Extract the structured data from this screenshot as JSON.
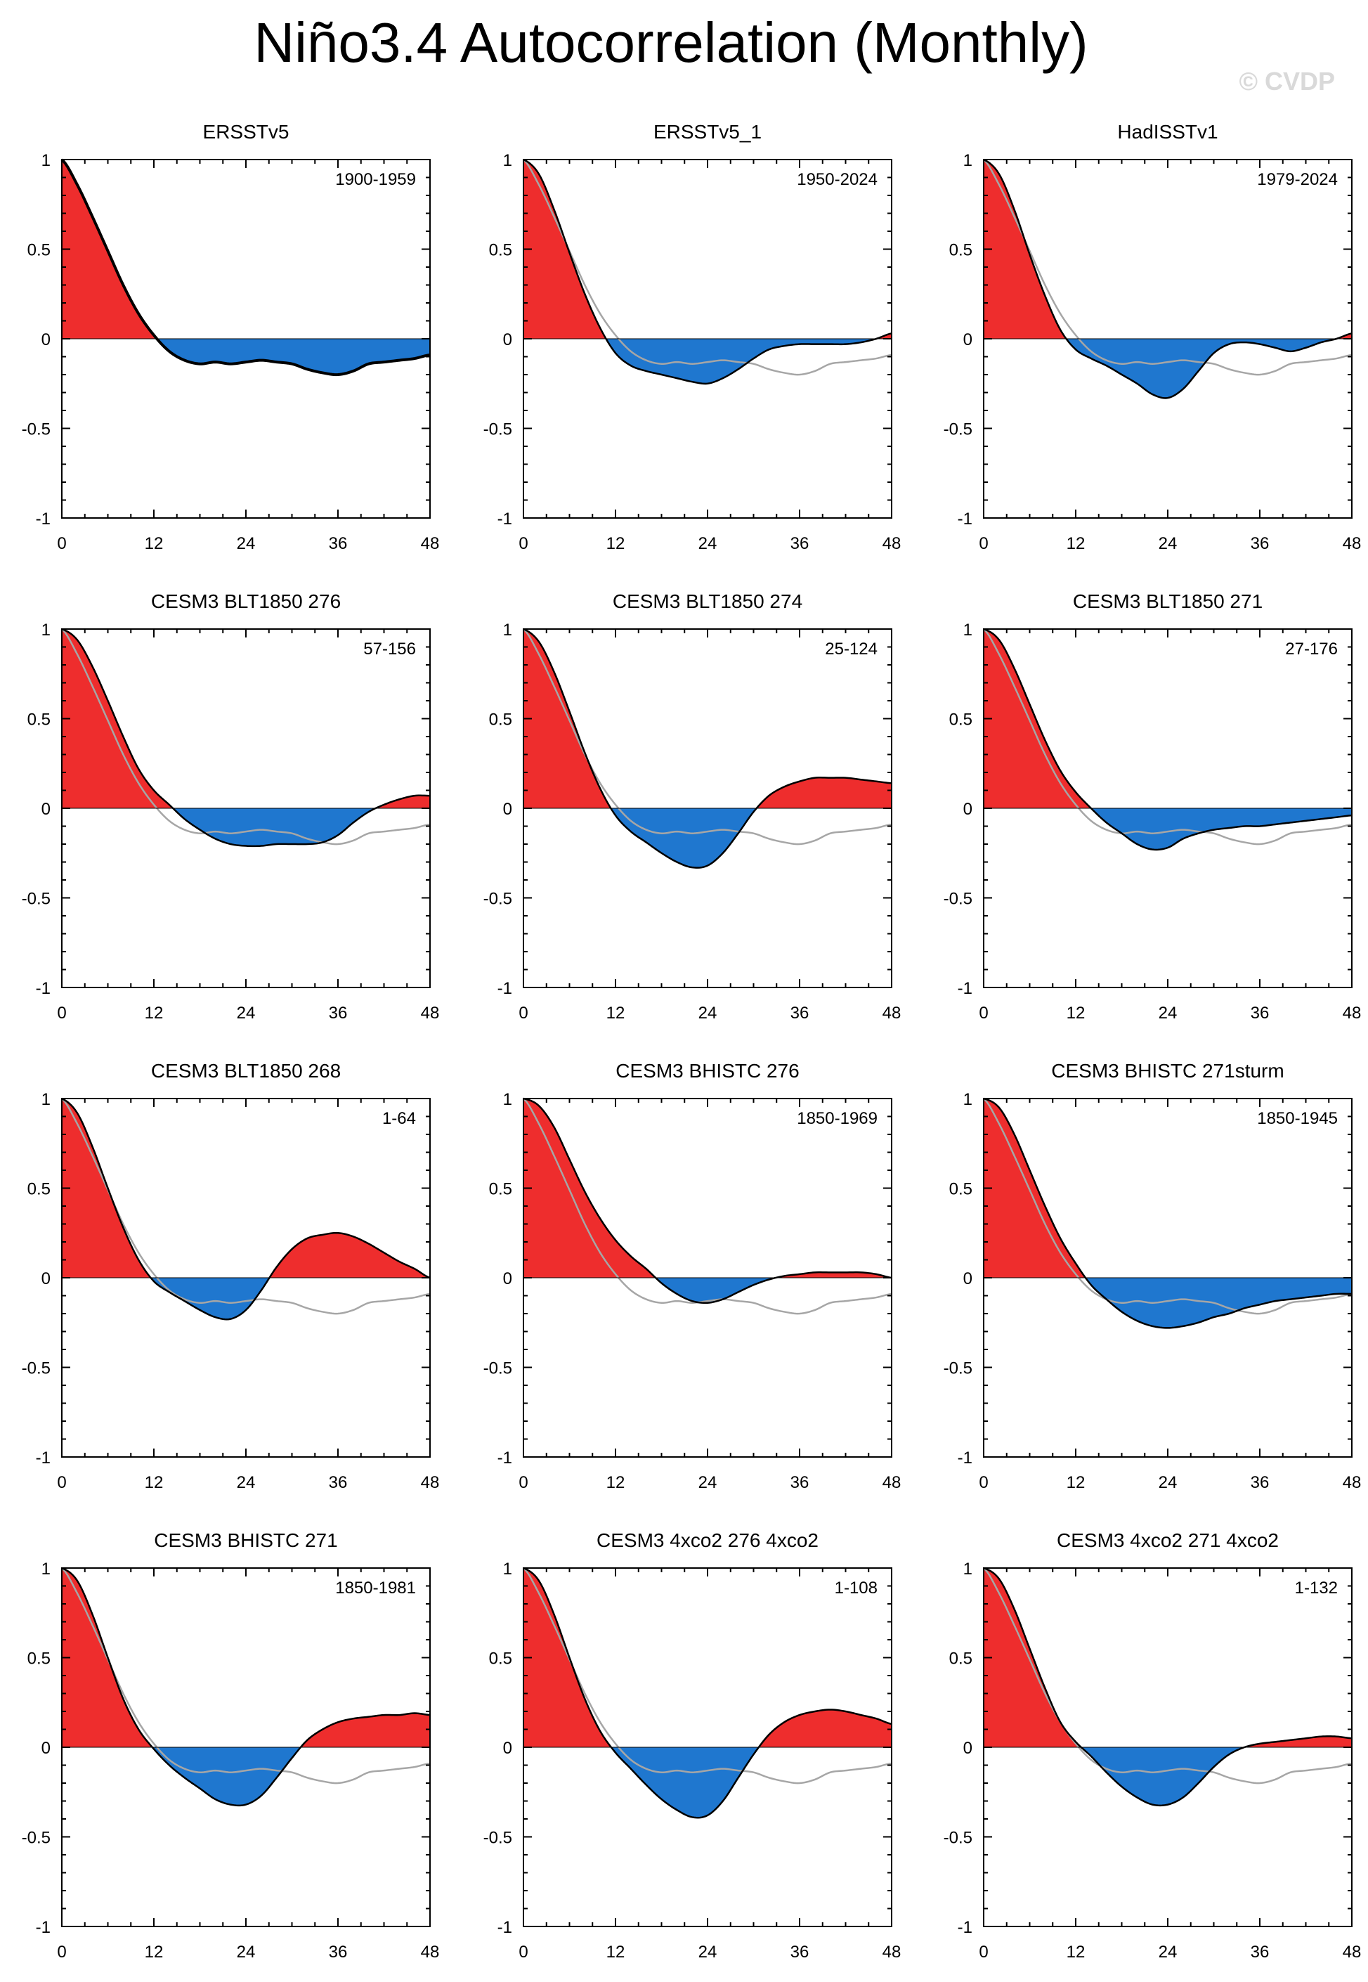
{
  "page_title": "Niño3.4 Autocorrelation (Monthly)",
  "watermark": "© CVDP",
  "colors": {
    "positive_fill": "#ee2d2d",
    "negative_fill": "#1f77cf",
    "model_line": "#000000",
    "reference_line": "#a6a6a6",
    "axis": "#000000"
  },
  "chart_data": [
    {
      "type": "area",
      "title": "ERSSTv5",
      "period": "1900-1959",
      "xticks": [
        0,
        12,
        24,
        36,
        48
      ],
      "yticks": [
        -1,
        -0.5,
        0,
        0.5,
        1
      ],
      "xlim": [
        0,
        48
      ],
      "ylim": [
        -1,
        1
      ],
      "lags": [
        0,
        2,
        4,
        6,
        8,
        10,
        12,
        14,
        16,
        18,
        20,
        22,
        24,
        26,
        28,
        30,
        32,
        34,
        36,
        38,
        40,
        42,
        44,
        46,
        48
      ],
      "values": [
        1,
        0.86,
        0.68,
        0.49,
        0.3,
        0.14,
        0.02,
        -0.07,
        -0.12,
        -0.14,
        -0.13,
        -0.14,
        -0.13,
        -0.12,
        -0.13,
        -0.14,
        -0.17,
        -0.19,
        -0.2,
        -0.18,
        -0.14,
        -0.13,
        -0.12,
        -0.11,
        -0.09
      ],
      "reference": [
        1,
        0.86,
        0.68,
        0.49,
        0.3,
        0.14,
        0.02,
        -0.07,
        -0.12,
        -0.14,
        -0.13,
        -0.14,
        -0.13,
        -0.12,
        -0.13,
        -0.14,
        -0.17,
        -0.19,
        -0.2,
        -0.18,
        -0.14,
        -0.13,
        -0.12,
        -0.11,
        -0.09
      ]
    },
    {
      "type": "area",
      "title": "ERSSTv5_1",
      "period": "1950-2024",
      "xticks": [
        0,
        12,
        24,
        36,
        48
      ],
      "yticks": [
        -1,
        -0.5,
        0,
        0.5,
        1
      ],
      "xlim": [
        0,
        48
      ],
      "ylim": [
        -1,
        1
      ],
      "lags": [
        0,
        2,
        4,
        6,
        8,
        10,
        12,
        14,
        16,
        18,
        20,
        22,
        24,
        26,
        28,
        30,
        32,
        34,
        36,
        38,
        40,
        42,
        44,
        46,
        48
      ],
      "values": [
        1,
        0.92,
        0.72,
        0.48,
        0.25,
        0.06,
        -0.08,
        -0.15,
        -0.18,
        -0.2,
        -0.22,
        -0.24,
        -0.25,
        -0.22,
        -0.17,
        -0.11,
        -0.06,
        -0.04,
        -0.03,
        -0.03,
        -0.03,
        -0.03,
        -0.02,
        0.0,
        0.03
      ],
      "reference": [
        1,
        0.86,
        0.68,
        0.49,
        0.3,
        0.14,
        0.02,
        -0.07,
        -0.12,
        -0.14,
        -0.13,
        -0.14,
        -0.13,
        -0.12,
        -0.13,
        -0.14,
        -0.17,
        -0.19,
        -0.2,
        -0.18,
        -0.14,
        -0.13,
        -0.12,
        -0.11,
        -0.09
      ]
    },
    {
      "type": "area",
      "title": "HadISSTv1",
      "period": "1979-2024",
      "xticks": [
        0,
        12,
        24,
        36,
        48
      ],
      "yticks": [
        -1,
        -0.5,
        0,
        0.5,
        1
      ],
      "xlim": [
        0,
        48
      ],
      "ylim": [
        -1,
        1
      ],
      "lags": [
        0,
        2,
        4,
        6,
        8,
        10,
        12,
        14,
        16,
        18,
        20,
        22,
        24,
        26,
        28,
        30,
        32,
        34,
        36,
        38,
        40,
        42,
        44,
        46,
        48
      ],
      "values": [
        1,
        0.92,
        0.72,
        0.47,
        0.24,
        0.05,
        -0.06,
        -0.11,
        -0.15,
        -0.2,
        -0.25,
        -0.31,
        -0.33,
        -0.28,
        -0.18,
        -0.08,
        -0.03,
        -0.02,
        -0.03,
        -0.05,
        -0.07,
        -0.05,
        -0.02,
        0.0,
        0.03
      ],
      "reference": [
        1,
        0.86,
        0.68,
        0.49,
        0.3,
        0.14,
        0.02,
        -0.07,
        -0.12,
        -0.14,
        -0.13,
        -0.14,
        -0.13,
        -0.12,
        -0.13,
        -0.14,
        -0.17,
        -0.19,
        -0.2,
        -0.18,
        -0.14,
        -0.13,
        -0.12,
        -0.11,
        -0.09
      ]
    },
    {
      "type": "area",
      "title": "CESM3 BLT1850 276",
      "period": "57-156",
      "xticks": [
        0,
        12,
        24,
        36,
        48
      ],
      "yticks": [
        -1,
        -0.5,
        0,
        0.5,
        1
      ],
      "xlim": [
        0,
        48
      ],
      "ylim": [
        -1,
        1
      ],
      "lags": [
        0,
        2,
        4,
        6,
        8,
        10,
        12,
        14,
        16,
        18,
        20,
        22,
        24,
        26,
        28,
        30,
        32,
        34,
        36,
        38,
        40,
        42,
        44,
        46,
        48
      ],
      "values": [
        1,
        0.94,
        0.79,
        0.6,
        0.4,
        0.22,
        0.1,
        0.02,
        -0.06,
        -0.12,
        -0.17,
        -0.2,
        -0.21,
        -0.21,
        -0.2,
        -0.2,
        -0.2,
        -0.19,
        -0.15,
        -0.08,
        -0.02,
        0.02,
        0.05,
        0.07,
        0.07
      ],
      "reference": [
        1,
        0.86,
        0.68,
        0.49,
        0.3,
        0.14,
        0.02,
        -0.07,
        -0.12,
        -0.14,
        -0.13,
        -0.14,
        -0.13,
        -0.12,
        -0.13,
        -0.14,
        -0.17,
        -0.19,
        -0.2,
        -0.18,
        -0.14,
        -0.13,
        -0.12,
        -0.11,
        -0.09
      ]
    },
    {
      "type": "area",
      "title": "CESM3 BLT1850 274",
      "period": "25-124",
      "xticks": [
        0,
        12,
        24,
        36,
        48
      ],
      "yticks": [
        -1,
        -0.5,
        0,
        0.5,
        1
      ],
      "xlim": [
        0,
        48
      ],
      "ylim": [
        -1,
        1
      ],
      "lags": [
        0,
        2,
        4,
        6,
        8,
        10,
        12,
        14,
        16,
        18,
        20,
        22,
        24,
        26,
        28,
        30,
        32,
        34,
        36,
        38,
        40,
        42,
        44,
        46,
        48
      ],
      "values": [
        1,
        0.93,
        0.76,
        0.54,
        0.31,
        0.11,
        -0.04,
        -0.13,
        -0.19,
        -0.25,
        -0.3,
        -0.33,
        -0.32,
        -0.25,
        -0.14,
        -0.02,
        0.07,
        0.12,
        0.15,
        0.17,
        0.17,
        0.17,
        0.16,
        0.15,
        0.14
      ],
      "reference": [
        1,
        0.86,
        0.68,
        0.49,
        0.3,
        0.14,
        0.02,
        -0.07,
        -0.12,
        -0.14,
        -0.13,
        -0.14,
        -0.13,
        -0.12,
        -0.13,
        -0.14,
        -0.17,
        -0.19,
        -0.2,
        -0.18,
        -0.14,
        -0.13,
        -0.12,
        -0.11,
        -0.09
      ]
    },
    {
      "type": "area",
      "title": "CESM3 BLT1850 271",
      "period": "27-176",
      "xticks": [
        0,
        12,
        24,
        36,
        48
      ],
      "yticks": [
        -1,
        -0.5,
        0,
        0.5,
        1
      ],
      "xlim": [
        0,
        48
      ],
      "ylim": [
        -1,
        1
      ],
      "lags": [
        0,
        2,
        4,
        6,
        8,
        10,
        12,
        14,
        16,
        18,
        20,
        22,
        24,
        26,
        28,
        30,
        32,
        34,
        36,
        38,
        40,
        42,
        44,
        46,
        48
      ],
      "values": [
        1,
        0.94,
        0.78,
        0.58,
        0.38,
        0.21,
        0.09,
        0.0,
        -0.08,
        -0.14,
        -0.2,
        -0.23,
        -0.22,
        -0.17,
        -0.14,
        -0.12,
        -0.11,
        -0.1,
        -0.1,
        -0.09,
        -0.08,
        -0.07,
        -0.06,
        -0.05,
        -0.04
      ],
      "reference": [
        1,
        0.86,
        0.68,
        0.49,
        0.3,
        0.14,
        0.02,
        -0.07,
        -0.12,
        -0.14,
        -0.13,
        -0.14,
        -0.13,
        -0.12,
        -0.13,
        -0.14,
        -0.17,
        -0.19,
        -0.2,
        -0.18,
        -0.14,
        -0.13,
        -0.12,
        -0.11,
        -0.09
      ]
    },
    {
      "type": "area",
      "title": "CESM3 BLT1850 268",
      "period": "1-64",
      "xticks": [
        0,
        12,
        24,
        36,
        48
      ],
      "yticks": [
        -1,
        -0.5,
        0,
        0.5,
        1
      ],
      "xlim": [
        0,
        48
      ],
      "ylim": [
        -1,
        1
      ],
      "lags": [
        0,
        2,
        4,
        6,
        8,
        10,
        12,
        14,
        16,
        18,
        20,
        22,
        24,
        26,
        28,
        30,
        32,
        34,
        36,
        38,
        40,
        42,
        44,
        46,
        48
      ],
      "values": [
        1,
        0.92,
        0.73,
        0.5,
        0.28,
        0.1,
        -0.02,
        -0.08,
        -0.13,
        -0.18,
        -0.22,
        -0.23,
        -0.18,
        -0.07,
        0.06,
        0.16,
        0.22,
        0.24,
        0.25,
        0.23,
        0.19,
        0.14,
        0.09,
        0.05,
        0.0
      ],
      "reference": [
        1,
        0.86,
        0.68,
        0.49,
        0.3,
        0.14,
        0.02,
        -0.07,
        -0.12,
        -0.14,
        -0.13,
        -0.14,
        -0.13,
        -0.12,
        -0.13,
        -0.14,
        -0.17,
        -0.19,
        -0.2,
        -0.18,
        -0.14,
        -0.13,
        -0.12,
        -0.11,
        -0.09
      ]
    },
    {
      "type": "area",
      "title": "CESM3 BHISTC 276",
      "period": "1850-1969",
      "xticks": [
        0,
        12,
        24,
        36,
        48
      ],
      "yticks": [
        -1,
        -0.5,
        0,
        0.5,
        1
      ],
      "xlim": [
        0,
        48
      ],
      "ylim": [
        -1,
        1
      ],
      "lags": [
        0,
        2,
        4,
        6,
        8,
        10,
        12,
        14,
        16,
        18,
        20,
        22,
        24,
        26,
        28,
        30,
        32,
        34,
        36,
        38,
        40,
        42,
        44,
        46,
        48
      ],
      "values": [
        1,
        0.96,
        0.84,
        0.66,
        0.48,
        0.33,
        0.21,
        0.12,
        0.05,
        -0.03,
        -0.09,
        -0.13,
        -0.14,
        -0.12,
        -0.08,
        -0.04,
        -0.01,
        0.01,
        0.02,
        0.03,
        0.03,
        0.03,
        0.03,
        0.02,
        0.0
      ],
      "reference": [
        1,
        0.86,
        0.68,
        0.49,
        0.3,
        0.14,
        0.02,
        -0.07,
        -0.12,
        -0.14,
        -0.13,
        -0.14,
        -0.13,
        -0.12,
        -0.13,
        -0.14,
        -0.17,
        -0.19,
        -0.2,
        -0.18,
        -0.14,
        -0.13,
        -0.12,
        -0.11,
        -0.09
      ]
    },
    {
      "type": "area",
      "title": "CESM3 BHISTC 271sturm",
      "period": "1850-1945",
      "xticks": [
        0,
        12,
        24,
        36,
        48
      ],
      "yticks": [
        -1,
        -0.5,
        0,
        0.5,
        1
      ],
      "xlim": [
        0,
        48
      ],
      "ylim": [
        -1,
        1
      ],
      "lags": [
        0,
        2,
        4,
        6,
        8,
        10,
        12,
        14,
        16,
        18,
        20,
        22,
        24,
        26,
        28,
        30,
        32,
        34,
        36,
        38,
        40,
        42,
        44,
        46,
        48
      ],
      "values": [
        1,
        0.95,
        0.8,
        0.6,
        0.4,
        0.22,
        0.08,
        -0.04,
        -0.12,
        -0.19,
        -0.24,
        -0.27,
        -0.28,
        -0.27,
        -0.25,
        -0.22,
        -0.2,
        -0.17,
        -0.15,
        -0.13,
        -0.12,
        -0.11,
        -0.1,
        -0.09,
        -0.09
      ],
      "reference": [
        1,
        0.86,
        0.68,
        0.49,
        0.3,
        0.14,
        0.02,
        -0.07,
        -0.12,
        -0.14,
        -0.13,
        -0.14,
        -0.13,
        -0.12,
        -0.13,
        -0.14,
        -0.17,
        -0.19,
        -0.2,
        -0.18,
        -0.14,
        -0.13,
        -0.12,
        -0.11,
        -0.09
      ]
    },
    {
      "type": "area",
      "title": "CESM3 BHISTC 271",
      "period": "1850-1981",
      "xticks": [
        0,
        12,
        24,
        36,
        48
      ],
      "yticks": [
        -1,
        -0.5,
        0,
        0.5,
        1
      ],
      "xlim": [
        0,
        48
      ],
      "ylim": [
        -1,
        1
      ],
      "lags": [
        0,
        2,
        4,
        6,
        8,
        10,
        12,
        14,
        16,
        18,
        20,
        22,
        24,
        26,
        28,
        30,
        32,
        34,
        36,
        38,
        40,
        42,
        44,
        46,
        48
      ],
      "values": [
        1,
        0.93,
        0.74,
        0.5,
        0.27,
        0.1,
        -0.01,
        -0.1,
        -0.17,
        -0.23,
        -0.29,
        -0.32,
        -0.32,
        -0.27,
        -0.17,
        -0.06,
        0.04,
        0.1,
        0.14,
        0.16,
        0.17,
        0.18,
        0.18,
        0.19,
        0.18
      ],
      "reference": [
        1,
        0.86,
        0.68,
        0.49,
        0.3,
        0.14,
        0.02,
        -0.07,
        -0.12,
        -0.14,
        -0.13,
        -0.14,
        -0.13,
        -0.12,
        -0.13,
        -0.14,
        -0.17,
        -0.19,
        -0.2,
        -0.18,
        -0.14,
        -0.13,
        -0.12,
        -0.11,
        -0.09
      ]
    },
    {
      "type": "area",
      "title": "CESM3 4xco2 276 4xco2",
      "period": "1-108",
      "xticks": [
        0,
        12,
        24,
        36,
        48
      ],
      "yticks": [
        -1,
        -0.5,
        0,
        0.5,
        1
      ],
      "xlim": [
        0,
        48
      ],
      "ylim": [
        -1,
        1
      ],
      "lags": [
        0,
        2,
        4,
        6,
        8,
        10,
        12,
        14,
        16,
        18,
        20,
        22,
        24,
        26,
        28,
        30,
        32,
        34,
        36,
        38,
        40,
        42,
        44,
        46,
        48
      ],
      "values": [
        1,
        0.93,
        0.74,
        0.5,
        0.27,
        0.09,
        -0.03,
        -0.12,
        -0.21,
        -0.29,
        -0.35,
        -0.39,
        -0.38,
        -0.3,
        -0.17,
        -0.04,
        0.07,
        0.14,
        0.18,
        0.2,
        0.21,
        0.2,
        0.18,
        0.16,
        0.13
      ],
      "reference": [
        1,
        0.86,
        0.68,
        0.49,
        0.3,
        0.14,
        0.02,
        -0.07,
        -0.12,
        -0.14,
        -0.13,
        -0.14,
        -0.13,
        -0.12,
        -0.13,
        -0.14,
        -0.17,
        -0.19,
        -0.2,
        -0.18,
        -0.14,
        -0.13,
        -0.12,
        -0.11,
        -0.09
      ]
    },
    {
      "type": "area",
      "title": "CESM3 4xco2 271 4xco2",
      "period": "1-132",
      "xticks": [
        0,
        12,
        24,
        36,
        48
      ],
      "yticks": [
        -1,
        -0.5,
        0,
        0.5,
        1
      ],
      "xlim": [
        0,
        48
      ],
      "ylim": [
        -1,
        1
      ],
      "lags": [
        0,
        2,
        4,
        6,
        8,
        10,
        12,
        14,
        16,
        18,
        20,
        22,
        24,
        26,
        28,
        30,
        32,
        34,
        36,
        38,
        40,
        42,
        44,
        46,
        48
      ],
      "values": [
        1,
        0.94,
        0.77,
        0.55,
        0.33,
        0.14,
        0.03,
        -0.05,
        -0.14,
        -0.22,
        -0.28,
        -0.32,
        -0.32,
        -0.28,
        -0.2,
        -0.11,
        -0.04,
        0.0,
        0.02,
        0.03,
        0.04,
        0.05,
        0.06,
        0.06,
        0.05
      ],
      "reference": [
        1,
        0.86,
        0.68,
        0.49,
        0.3,
        0.14,
        0.02,
        -0.07,
        -0.12,
        -0.14,
        -0.13,
        -0.14,
        -0.13,
        -0.12,
        -0.13,
        -0.14,
        -0.17,
        -0.19,
        -0.2,
        -0.18,
        -0.14,
        -0.13,
        -0.12,
        -0.11,
        -0.09
      ]
    }
  ]
}
